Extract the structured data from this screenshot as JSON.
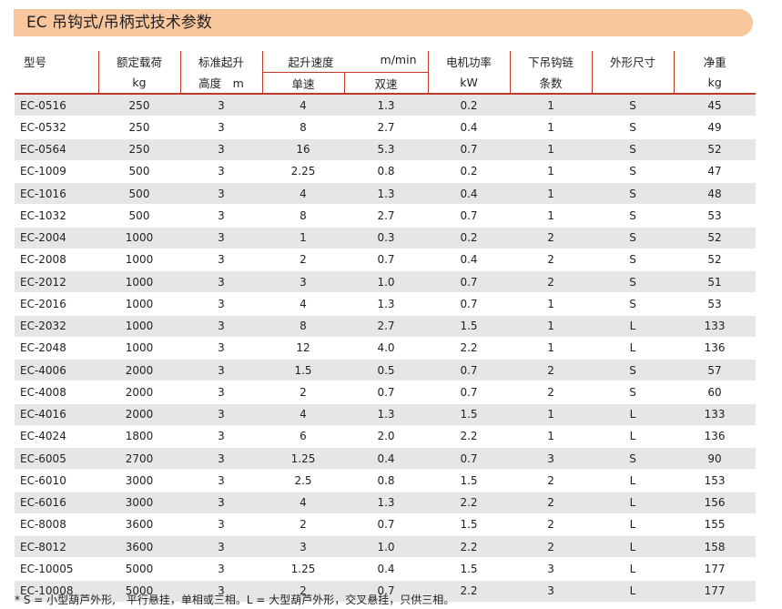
{
  "title": "EC 吊钩式/吊柄式技术参数",
  "header": {
    "model": "型号",
    "rated_load": "额定载荷",
    "rated_load_unit": "kg",
    "lift_height": "标准起升",
    "lift_height_sub": "高度　m",
    "lift_speed": "起升速度",
    "lift_speed_unit": "m/min",
    "single_speed": "单速",
    "dual_speed": "双速",
    "motor_power": "电机功率",
    "motor_power_unit": "kW",
    "chain_falls": "下吊钩链",
    "chain_falls_sub": "条数",
    "dimension": "外形尺寸",
    "net_weight": "净重",
    "net_weight_unit": "kg"
  },
  "rows": [
    {
      "model": "EC-0516",
      "load": "250",
      "height": "3",
      "single": "4",
      "dual": "1.3",
      "power": "0.2",
      "falls": "1",
      "size": "S",
      "weight": "45"
    },
    {
      "model": "EC-0532",
      "load": "250",
      "height": "3",
      "single": "8",
      "dual": "2.7",
      "power": "0.4",
      "falls": "1",
      "size": "S",
      "weight": "49"
    },
    {
      "model": "EC-0564",
      "load": "250",
      "height": "3",
      "single": "16",
      "dual": "5.3",
      "power": "0.7",
      "falls": "1",
      "size": "S",
      "weight": "52"
    },
    {
      "model": "EC-1009",
      "load": "500",
      "height": "3",
      "single": "2.25",
      "dual": "0.8",
      "power": "0.2",
      "falls": "1",
      "size": "S",
      "weight": "47"
    },
    {
      "model": "EC-1016",
      "load": "500",
      "height": "3",
      "single": "4",
      "dual": "1.3",
      "power": "0.4",
      "falls": "1",
      "size": "S",
      "weight": "48"
    },
    {
      "model": "EC-1032",
      "load": "500",
      "height": "3",
      "single": "8",
      "dual": "2.7",
      "power": "0.7",
      "falls": "1",
      "size": "S",
      "weight": "53"
    },
    {
      "model": "EC-2004",
      "load": "1000",
      "height": "3",
      "single": "1",
      "dual": "0.3",
      "power": "0.2",
      "falls": "2",
      "size": "S",
      "weight": "52"
    },
    {
      "model": "EC-2008",
      "load": "1000",
      "height": "3",
      "single": "2",
      "dual": "0.7",
      "power": "0.4",
      "falls": "2",
      "size": "S",
      "weight": "52"
    },
    {
      "model": "EC-2012",
      "load": "1000",
      "height": "3",
      "single": "3",
      "dual": "1.0",
      "power": "0.7",
      "falls": "2",
      "size": "S",
      "weight": "51"
    },
    {
      "model": "EC-2016",
      "load": "1000",
      "height": "3",
      "single": "4",
      "dual": "1.3",
      "power": "0.7",
      "falls": "1",
      "size": "S",
      "weight": "53"
    },
    {
      "model": "EC-2032",
      "load": "1000",
      "height": "3",
      "single": "8",
      "dual": "2.7",
      "power": "1.5",
      "falls": "1",
      "size": "L",
      "weight": "133"
    },
    {
      "model": "EC-2048",
      "load": "1000",
      "height": "3",
      "single": "12",
      "dual": "4.0",
      "power": "2.2",
      "falls": "1",
      "size": "L",
      "weight": "136"
    },
    {
      "model": "EC-4006",
      "load": "2000",
      "height": "3",
      "single": "1.5",
      "dual": "0.5",
      "power": "0.7",
      "falls": "2",
      "size": "S",
      "weight": "57"
    },
    {
      "model": "EC-4008",
      "load": "2000",
      "height": "3",
      "single": "2",
      "dual": "0.7",
      "power": "0.7",
      "falls": "2",
      "size": "S",
      "weight": "60"
    },
    {
      "model": "EC-4016",
      "load": "2000",
      "height": "3",
      "single": "4",
      "dual": "1.3",
      "power": "1.5",
      "falls": "1",
      "size": "L",
      "weight": "133"
    },
    {
      "model": "EC-4024",
      "load": "1800",
      "height": "3",
      "single": "6",
      "dual": "2.0",
      "power": "2.2",
      "falls": "1",
      "size": "L",
      "weight": "136"
    },
    {
      "model": "EC-6005",
      "load": "2700",
      "height": "3",
      "single": "1.25",
      "dual": "0.4",
      "power": "0.7",
      "falls": "3",
      "size": "S",
      "weight": "90"
    },
    {
      "model": "EC-6010",
      "load": "3000",
      "height": "3",
      "single": "2.5",
      "dual": "0.8",
      "power": "1.5",
      "falls": "2",
      "size": "L",
      "weight": "153"
    },
    {
      "model": "EC-6016",
      "load": "3000",
      "height": "3",
      "single": "4",
      "dual": "1.3",
      "power": "2.2",
      "falls": "2",
      "size": "L",
      "weight": "156"
    },
    {
      "model": "EC-8008",
      "load": "3600",
      "height": "3",
      "single": "2",
      "dual": "0.7",
      "power": "1.5",
      "falls": "2",
      "size": "L",
      "weight": "155"
    },
    {
      "model": "EC-8012",
      "load": "3600",
      "height": "3",
      "single": "3",
      "dual": "1.0",
      "power": "2.2",
      "falls": "2",
      "size": "L",
      "weight": "158"
    },
    {
      "model": "EC-10005",
      "load": "5000",
      "height": "3",
      "single": "1.25",
      "dual": "0.4",
      "power": "1.5",
      "falls": "3",
      "size": "L",
      "weight": "177"
    },
    {
      "model": "EC-10008",
      "load": "5000",
      "height": "3",
      "single": "2",
      "dual": "0.7",
      "power": "2.2",
      "falls": "3",
      "size": "L",
      "weight": "177"
    }
  ],
  "footnote": "* S = 小型葫芦外形,　平行悬挂，单相或三相。L = 大型葫芦外形，交叉悬挂，只供三相。",
  "colors": {
    "title_bar": "#f8c79d",
    "rule_lines": "#c0392b",
    "row_shading": "#e6e6e7"
  }
}
